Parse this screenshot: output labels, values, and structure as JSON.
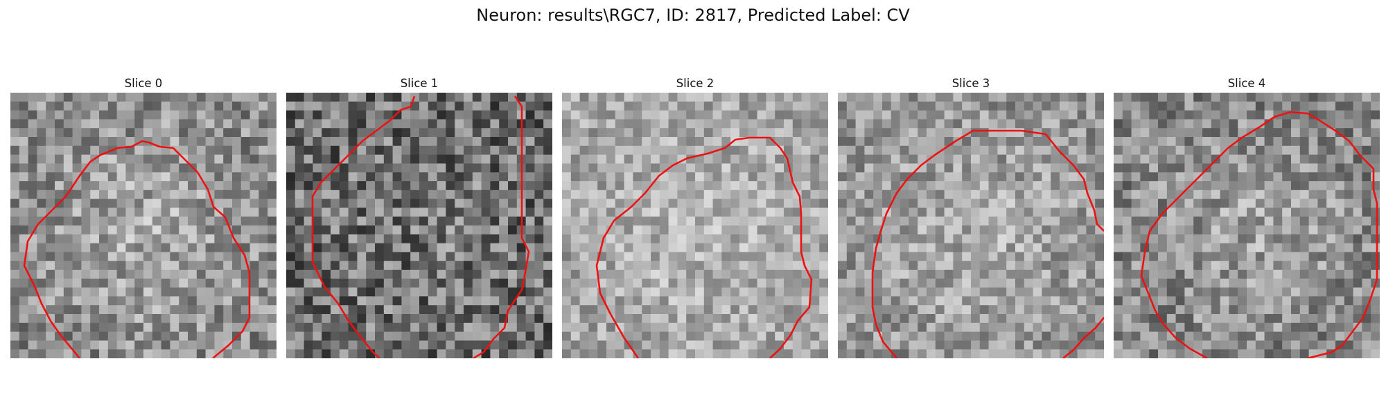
{
  "figure": {
    "title": "Neuron: results\\RGC7, ID: 2817, Predicted Label: CV"
  },
  "colors": {
    "contour": "#ee1111",
    "background": "#ffffff"
  },
  "panels": [
    {
      "title": "Slice 0"
    },
    {
      "title": "Slice 1"
    },
    {
      "title": "Slice 2"
    },
    {
      "title": "Slice 3"
    },
    {
      "title": "Slice 4"
    }
  ]
}
